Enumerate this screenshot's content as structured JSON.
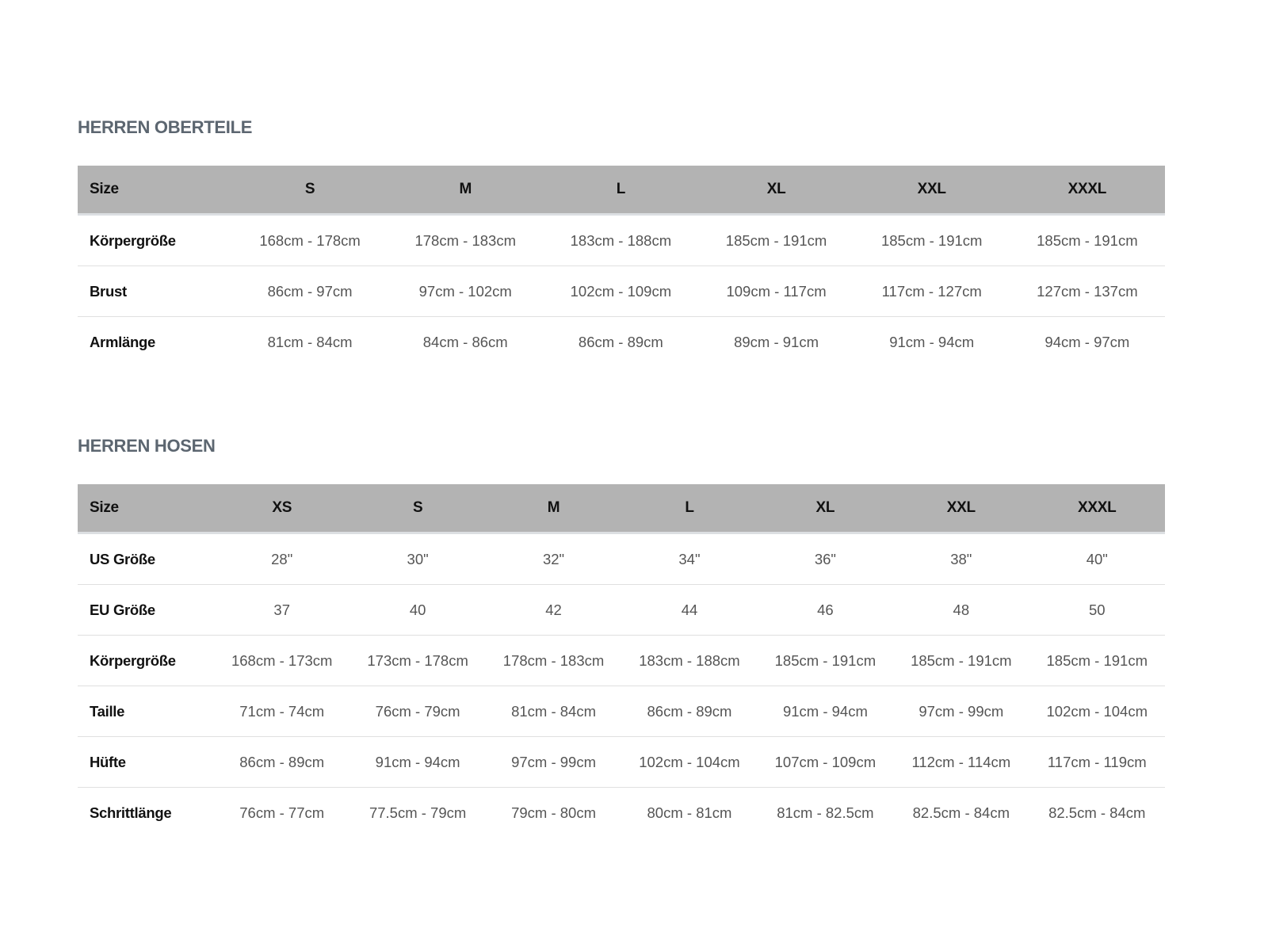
{
  "tops": {
    "title": "HERREN OBERTEILE",
    "header": [
      "Size",
      "S",
      "M",
      "L",
      "XL",
      "XXL",
      "XXXL"
    ],
    "rows": [
      {
        "label": "Körpergröße",
        "values": [
          "168cm - 178cm",
          "178cm - 183cm",
          "183cm - 188cm",
          "185cm - 191cm",
          "185cm - 191cm",
          "185cm - 191cm"
        ]
      },
      {
        "label": "Brust",
        "values": [
          "86cm - 97cm",
          "97cm - 102cm",
          "102cm - 109cm",
          "109cm - 117cm",
          "117cm - 127cm",
          "127cm - 137cm"
        ]
      },
      {
        "label": "Armlänge",
        "values": [
          "81cm - 84cm",
          "84cm - 86cm",
          "86cm - 89cm",
          "89cm - 91cm",
          "91cm - 94cm",
          "94cm - 97cm"
        ]
      }
    ]
  },
  "pants": {
    "title": "HERREN HOSEN",
    "header": [
      "Size",
      "XS",
      "S",
      "M",
      "L",
      "XL",
      "XXL",
      "XXXL"
    ],
    "rows": [
      {
        "label": "US Größe",
        "values": [
          "28\"",
          "30\"",
          "32\"",
          "34\"",
          "36\"",
          "38\"",
          "40\""
        ]
      },
      {
        "label": "EU Größe",
        "values": [
          "37",
          "40",
          "42",
          "44",
          "46",
          "48",
          "50"
        ]
      },
      {
        "label": "Körpergröße",
        "values": [
          "168cm - 173cm",
          "173cm - 178cm",
          "178cm - 183cm",
          "183cm - 188cm",
          "185cm - 191cm",
          "185cm - 191cm",
          "185cm - 191cm"
        ]
      },
      {
        "label": "Taille",
        "values": [
          "71cm - 74cm",
          "76cm - 79cm",
          "81cm - 84cm",
          "86cm - 89cm",
          "91cm - 94cm",
          "97cm - 99cm",
          "102cm - 104cm"
        ]
      },
      {
        "label": "Hüfte",
        "values": [
          "86cm - 89cm",
          "91cm - 94cm",
          "97cm - 99cm",
          "102cm - 104cm",
          "107cm - 109cm",
          "112cm - 114cm",
          "117cm - 119cm"
        ]
      },
      {
        "label": "Schrittlänge",
        "values": [
          "76cm - 77cm",
          "77.5cm - 79cm",
          "79cm - 80cm",
          "80cm - 81cm",
          "81cm - 82.5cm",
          "82.5cm - 84cm",
          "82.5cm - 84cm"
        ]
      }
    ]
  },
  "colors": {
    "header_bg": "#b3b3b3",
    "title": "#5c6670",
    "cell_text": "#555555"
  }
}
